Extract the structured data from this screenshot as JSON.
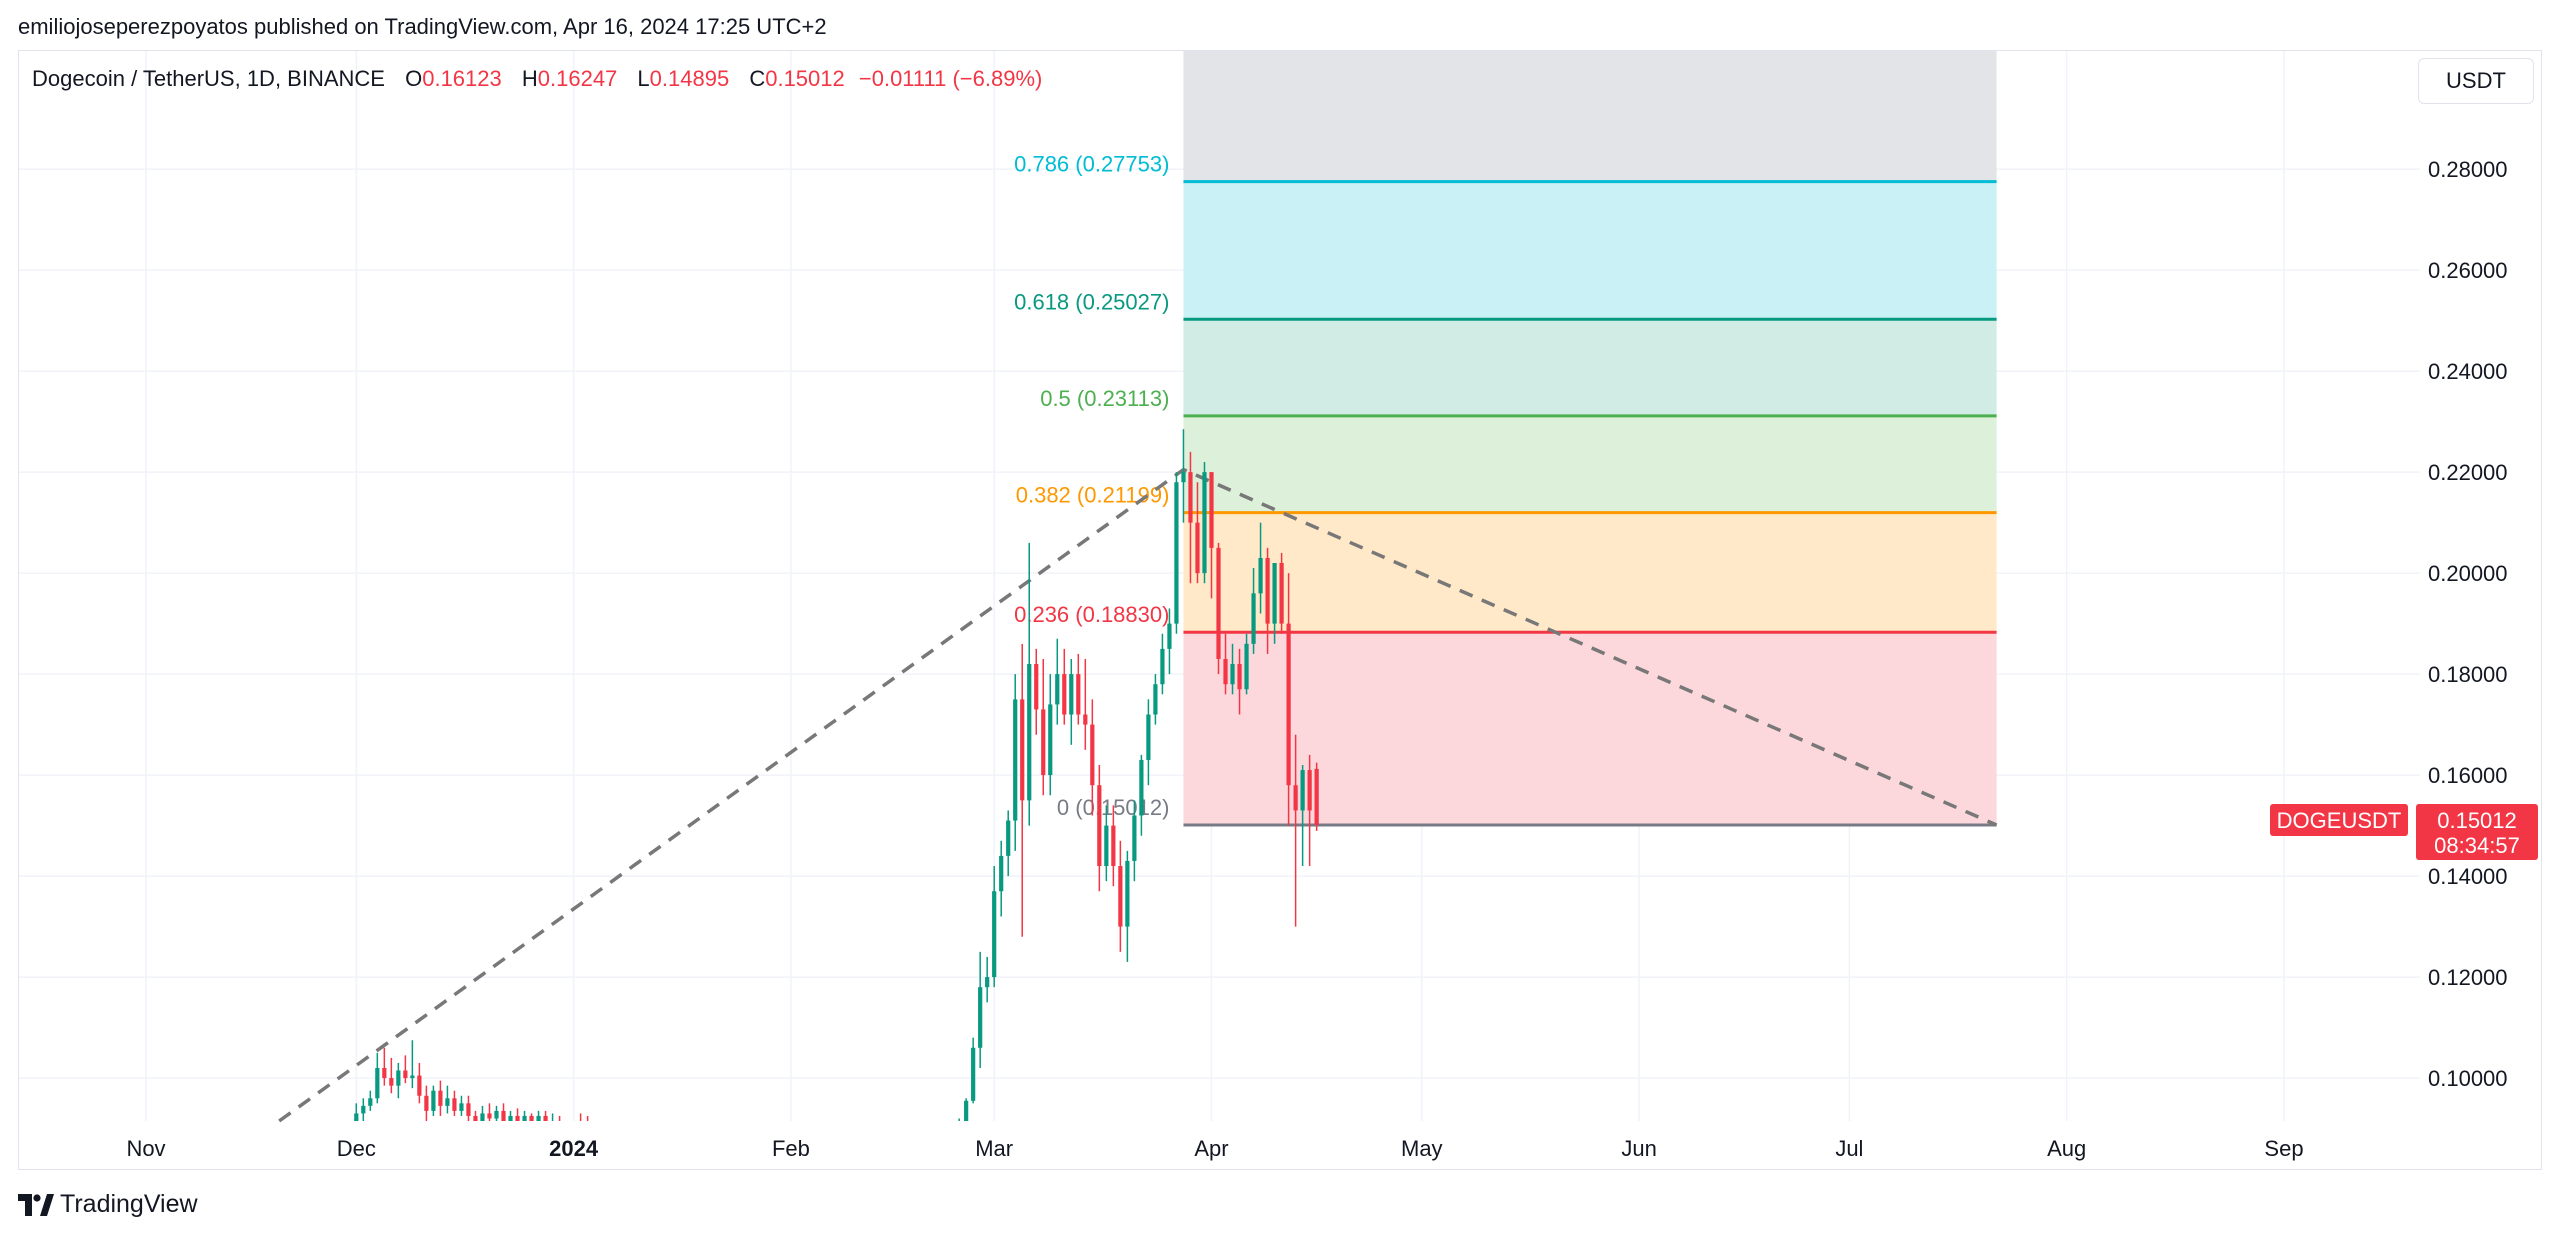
{
  "header": {
    "published_line": "emiliojoseperezpoyatos published on TradingView.com, Apr 16, 2024 17:25 UTC+2"
  },
  "legend": {
    "symbol": "Dogecoin / TetherUS, 1D, BINANCE",
    "open_label": "O",
    "open": "0.16123",
    "high_label": "H",
    "high": "0.16247",
    "low_label": "L",
    "low": "0.14895",
    "close_label": "C",
    "close": "0.15012",
    "change": "−0.01111 (−6.89%)"
  },
  "currency_button": "USDT",
  "brand": {
    "name": "TradingView"
  },
  "price_tag": {
    "symbol": "DOGEUSDT",
    "price": "0.15012",
    "countdown": "08:34:57",
    "color": "#f23645"
  },
  "chart_data": {
    "type": "candlestick",
    "x_axis_labels": [
      {
        "label": "Nov",
        "date": "2023-11-01"
      },
      {
        "label": "Dec",
        "date": "2023-12-01"
      },
      {
        "label": "2024",
        "date": "2024-01-01",
        "bold": true
      },
      {
        "label": "Feb",
        "date": "2024-02-01"
      },
      {
        "label": "Mar",
        "date": "2024-03-01"
      },
      {
        "label": "Apr",
        "date": "2024-04-01"
      },
      {
        "label": "May",
        "date": "2024-05-01"
      },
      {
        "label": "Jun",
        "date": "2024-06-01"
      },
      {
        "label": "Jul",
        "date": "2024-07-01"
      },
      {
        "label": "Aug",
        "date": "2024-08-01"
      },
      {
        "label": "Sep",
        "date": "2024-09-01"
      }
    ],
    "y_ticks": [
      "0.28000",
      "0.26000",
      "0.24000",
      "0.22000",
      "0.20000",
      "0.18000",
      "0.16000",
      "0.14000",
      "0.12000",
      "0.10000"
    ],
    "y_range": [
      0.0915,
      0.3034
    ],
    "grid": true,
    "up_color": "#089981",
    "down_color": "#f23645",
    "fib_levels": [
      {
        "label": "0.786 (0.27753)",
        "price": 0.27753,
        "color": "#00bcd4",
        "fill": "#caf1f5"
      },
      {
        "label": "0.618 (0.25027)",
        "price": 0.25027,
        "color": "#089981",
        "fill": "#d1ebe5"
      },
      {
        "label": "0.5 (0.23113)",
        "price": 0.23113,
        "color": "#4caf50",
        "fill": "#dcf0da"
      },
      {
        "label": "0.382 (0.21199)",
        "price": 0.21199,
        "color": "#ff9800",
        "fill": "#ffe9c8"
      },
      {
        "label": "0.236 (0.18830)",
        "price": 0.1883,
        "color": "#f23645",
        "fill": "#fcd7db"
      },
      {
        "label": "0 (0.15012)",
        "price": 0.15012,
        "color": "#787b86",
        "fill": null
      }
    ],
    "fib_top_fill": "#e3e4e7",
    "fib_start_date": "2024-03-28",
    "fib_end_date": "2024-07-22",
    "trend_line": [
      {
        "date": "2023-11-20",
        "price": 0.0915
      },
      {
        "date": "2024-03-28",
        "price": 0.2205
      },
      {
        "date": "2024-07-22",
        "price": 0.15012
      }
    ],
    "candles": [
      {
        "d": "2023-12-01",
        "o": 0.0905,
        "h": 0.095,
        "l": 0.089,
        "c": 0.093
      },
      {
        "d": "2023-12-02",
        "o": 0.093,
        "h": 0.096,
        "l": 0.0915,
        "c": 0.0945
      },
      {
        "d": "2023-12-03",
        "o": 0.0945,
        "h": 0.0975,
        "l": 0.0935,
        "c": 0.096
      },
      {
        "d": "2023-12-04",
        "o": 0.096,
        "h": 0.105,
        "l": 0.095,
        "c": 0.102
      },
      {
        "d": "2023-12-05",
        "o": 0.102,
        "h": 0.106,
        "l": 0.0985,
        "c": 0.1
      },
      {
        "d": "2023-12-06",
        "o": 0.1,
        "h": 0.104,
        "l": 0.097,
        "c": 0.0985
      },
      {
        "d": "2023-12-07",
        "o": 0.0985,
        "h": 0.103,
        "l": 0.096,
        "c": 0.1015
      },
      {
        "d": "2023-12-08",
        "o": 0.1015,
        "h": 0.1045,
        "l": 0.099,
        "c": 0.1
      },
      {
        "d": "2023-12-09",
        "o": 0.1,
        "h": 0.1075,
        "l": 0.098,
        "c": 0.1005
      },
      {
        "d": "2023-12-10",
        "o": 0.1005,
        "h": 0.103,
        "l": 0.095,
        "c": 0.0965
      },
      {
        "d": "2023-12-11",
        "o": 0.0965,
        "h": 0.0985,
        "l": 0.091,
        "c": 0.0935
      },
      {
        "d": "2023-12-12",
        "o": 0.0935,
        "h": 0.0985,
        "l": 0.0925,
        "c": 0.0975
      },
      {
        "d": "2023-12-13",
        "o": 0.0975,
        "h": 0.0995,
        "l": 0.0925,
        "c": 0.0945
      },
      {
        "d": "2023-12-14",
        "o": 0.0945,
        "h": 0.0985,
        "l": 0.093,
        "c": 0.096
      },
      {
        "d": "2023-12-15",
        "o": 0.096,
        "h": 0.0975,
        "l": 0.0925,
        "c": 0.0935
      },
      {
        "d": "2023-12-16",
        "o": 0.0935,
        "h": 0.0965,
        "l": 0.0925,
        "c": 0.095
      },
      {
        "d": "2023-12-17",
        "o": 0.095,
        "h": 0.0965,
        "l": 0.091,
        "c": 0.0925
      },
      {
        "d": "2023-12-18",
        "o": 0.0925,
        "h": 0.0935,
        "l": 0.088,
        "c": 0.0905
      },
      {
        "d": "2023-12-19",
        "o": 0.0905,
        "h": 0.0945,
        "l": 0.0895,
        "c": 0.093
      },
      {
        "d": "2023-12-20",
        "o": 0.093,
        "h": 0.095,
        "l": 0.091,
        "c": 0.092
      },
      {
        "d": "2023-12-21",
        "o": 0.092,
        "h": 0.0945,
        "l": 0.091,
        "c": 0.0935
      },
      {
        "d": "2023-12-22",
        "o": 0.0935,
        "h": 0.095,
        "l": 0.0905,
        "c": 0.0915
      },
      {
        "d": "2023-12-23",
        "o": 0.0915,
        "h": 0.0935,
        "l": 0.09,
        "c": 0.0925
      },
      {
        "d": "2023-12-24",
        "o": 0.0925,
        "h": 0.094,
        "l": 0.09,
        "c": 0.091
      },
      {
        "d": "2023-12-25",
        "o": 0.091,
        "h": 0.0935,
        "l": 0.09,
        "c": 0.0925
      },
      {
        "d": "2023-12-26",
        "o": 0.0925,
        "h": 0.093,
        "l": 0.088,
        "c": 0.09
      },
      {
        "d": "2023-12-27",
        "o": 0.09,
        "h": 0.0935,
        "l": 0.089,
        "c": 0.0925
      },
      {
        "d": "2023-12-28",
        "o": 0.0925,
        "h": 0.0935,
        "l": 0.0895,
        "c": 0.0905
      },
      {
        "d": "2023-12-29",
        "o": 0.0905,
        "h": 0.093,
        "l": 0.089,
        "c": 0.0915
      },
      {
        "d": "2023-12-30",
        "o": 0.0915,
        "h": 0.0925,
        "l": 0.0885,
        "c": 0.09
      },
      {
        "d": "2024-01-02",
        "o": 0.091,
        "h": 0.093,
        "l": 0.089,
        "c": 0.09
      },
      {
        "d": "2024-01-03",
        "o": 0.09,
        "h": 0.0925,
        "l": 0.088,
        "c": 0.0895
      },
      {
        "d": "2024-02-25",
        "o": 0.088,
        "h": 0.092,
        "l": 0.087,
        "c": 0.091
      },
      {
        "d": "2024-02-26",
        "o": 0.091,
        "h": 0.096,
        "l": 0.09,
        "c": 0.0955
      },
      {
        "d": "2024-02-27",
        "o": 0.0955,
        "h": 0.108,
        "l": 0.095,
        "c": 0.106
      },
      {
        "d": "2024-02-28",
        "o": 0.106,
        "h": 0.125,
        "l": 0.102,
        "c": 0.118
      },
      {
        "d": "2024-02-29",
        "o": 0.118,
        "h": 0.124,
        "l": 0.115,
        "c": 0.12
      },
      {
        "d": "2024-03-01",
        "o": 0.12,
        "h": 0.142,
        "l": 0.118,
        "c": 0.137
      },
      {
        "d": "2024-03-02",
        "o": 0.137,
        "h": 0.147,
        "l": 0.132,
        "c": 0.144
      },
      {
        "d": "2024-03-03",
        "o": 0.144,
        "h": 0.153,
        "l": 0.14,
        "c": 0.151
      },
      {
        "d": "2024-03-04",
        "o": 0.151,
        "h": 0.18,
        "l": 0.145,
        "c": 0.175
      },
      {
        "d": "2024-03-05",
        "o": 0.175,
        "h": 0.186,
        "l": 0.128,
        "c": 0.155
      },
      {
        "d": "2024-03-06",
        "o": 0.155,
        "h": 0.206,
        "l": 0.15,
        "c": 0.182
      },
      {
        "d": "2024-03-07",
        "o": 0.182,
        "h": 0.185,
        "l": 0.168,
        "c": 0.173
      },
      {
        "d": "2024-03-08",
        "o": 0.173,
        "h": 0.183,
        "l": 0.156,
        "c": 0.16
      },
      {
        "d": "2024-03-09",
        "o": 0.16,
        "h": 0.18,
        "l": 0.156,
        "c": 0.174
      },
      {
        "d": "2024-03-10",
        "o": 0.174,
        "h": 0.187,
        "l": 0.17,
        "c": 0.18
      },
      {
        "d": "2024-03-11",
        "o": 0.18,
        "h": 0.185,
        "l": 0.17,
        "c": 0.172
      },
      {
        "d": "2024-03-12",
        "o": 0.172,
        "h": 0.183,
        "l": 0.166,
        "c": 0.18
      },
      {
        "d": "2024-03-13",
        "o": 0.18,
        "h": 0.184,
        "l": 0.17,
        "c": 0.172
      },
      {
        "d": "2024-03-14",
        "o": 0.172,
        "h": 0.183,
        "l": 0.165,
        "c": 0.17
      },
      {
        "d": "2024-03-15",
        "o": 0.17,
        "h": 0.175,
        "l": 0.152,
        "c": 0.158
      },
      {
        "d": "2024-03-16",
        "o": 0.158,
        "h": 0.162,
        "l": 0.137,
        "c": 0.142
      },
      {
        "d": "2024-03-17",
        "o": 0.142,
        "h": 0.154,
        "l": 0.139,
        "c": 0.15
      },
      {
        "d": "2024-03-18",
        "o": 0.15,
        "h": 0.154,
        "l": 0.138,
        "c": 0.142
      },
      {
        "d": "2024-03-19",
        "o": 0.142,
        "h": 0.147,
        "l": 0.125,
        "c": 0.13
      },
      {
        "d": "2024-03-20",
        "o": 0.13,
        "h": 0.145,
        "l": 0.123,
        "c": 0.143
      },
      {
        "d": "2024-03-21",
        "o": 0.143,
        "h": 0.155,
        "l": 0.139,
        "c": 0.152
      },
      {
        "d": "2024-03-22",
        "o": 0.152,
        "h": 0.164,
        "l": 0.148,
        "c": 0.163
      },
      {
        "d": "2024-03-23",
        "o": 0.163,
        "h": 0.175,
        "l": 0.158,
        "c": 0.172
      },
      {
        "d": "2024-03-24",
        "o": 0.172,
        "h": 0.18,
        "l": 0.17,
        "c": 0.178
      },
      {
        "d": "2024-03-25",
        "o": 0.178,
        "h": 0.188,
        "l": 0.176,
        "c": 0.185
      },
      {
        "d": "2024-03-26",
        "o": 0.185,
        "h": 0.193,
        "l": 0.18,
        "c": 0.19
      },
      {
        "d": "2024-03-27",
        "o": 0.19,
        "h": 0.22,
        "l": 0.188,
        "c": 0.218
      },
      {
        "d": "2024-03-28",
        "o": 0.218,
        "h": 0.2285,
        "l": 0.21,
        "c": 0.22
      },
      {
        "d": "2024-03-29",
        "o": 0.22,
        "h": 0.224,
        "l": 0.198,
        "c": 0.21
      },
      {
        "d": "2024-03-30",
        "o": 0.21,
        "h": 0.218,
        "l": 0.198,
        "c": 0.2
      },
      {
        "d": "2024-03-31",
        "o": 0.2,
        "h": 0.222,
        "l": 0.198,
        "c": 0.22
      },
      {
        "d": "2024-04-01",
        "o": 0.22,
        "h": 0.22,
        "l": 0.195,
        "c": 0.205
      },
      {
        "d": "2024-04-02",
        "o": 0.205,
        "h": 0.206,
        "l": 0.18,
        "c": 0.183
      },
      {
        "d": "2024-04-03",
        "o": 0.183,
        "h": 0.188,
        "l": 0.176,
        "c": 0.178
      },
      {
        "d": "2024-04-04",
        "o": 0.178,
        "h": 0.186,
        "l": 0.176,
        "c": 0.182
      },
      {
        "d": "2024-04-05",
        "o": 0.182,
        "h": 0.185,
        "l": 0.172,
        "c": 0.177
      },
      {
        "d": "2024-04-06",
        "o": 0.177,
        "h": 0.188,
        "l": 0.176,
        "c": 0.186
      },
      {
        "d": "2024-04-07",
        "o": 0.186,
        "h": 0.201,
        "l": 0.184,
        "c": 0.196
      },
      {
        "d": "2024-04-08",
        "o": 0.196,
        "h": 0.21,
        "l": 0.192,
        "c": 0.203
      },
      {
        "d": "2024-04-09",
        "o": 0.203,
        "h": 0.205,
        "l": 0.184,
        "c": 0.19
      },
      {
        "d": "2024-04-10",
        "o": 0.19,
        "h": 0.202,
        "l": 0.186,
        "c": 0.202
      },
      {
        "d": "2024-04-11",
        "o": 0.202,
        "h": 0.204,
        "l": 0.188,
        "c": 0.19
      },
      {
        "d": "2024-04-12",
        "o": 0.19,
        "h": 0.2,
        "l": 0.15,
        "c": 0.158
      },
      {
        "d": "2024-04-13",
        "o": 0.158,
        "h": 0.168,
        "l": 0.13,
        "c": 0.153
      },
      {
        "d": "2024-04-14",
        "o": 0.153,
        "h": 0.162,
        "l": 0.142,
        "c": 0.161
      },
      {
        "d": "2024-04-15",
        "o": 0.161,
        "h": 0.164,
        "l": 0.142,
        "c": 0.153
      },
      {
        "d": "2024-04-16",
        "o": 0.16123,
        "h": 0.16247,
        "l": 0.14895,
        "c": 0.15012
      }
    ]
  }
}
